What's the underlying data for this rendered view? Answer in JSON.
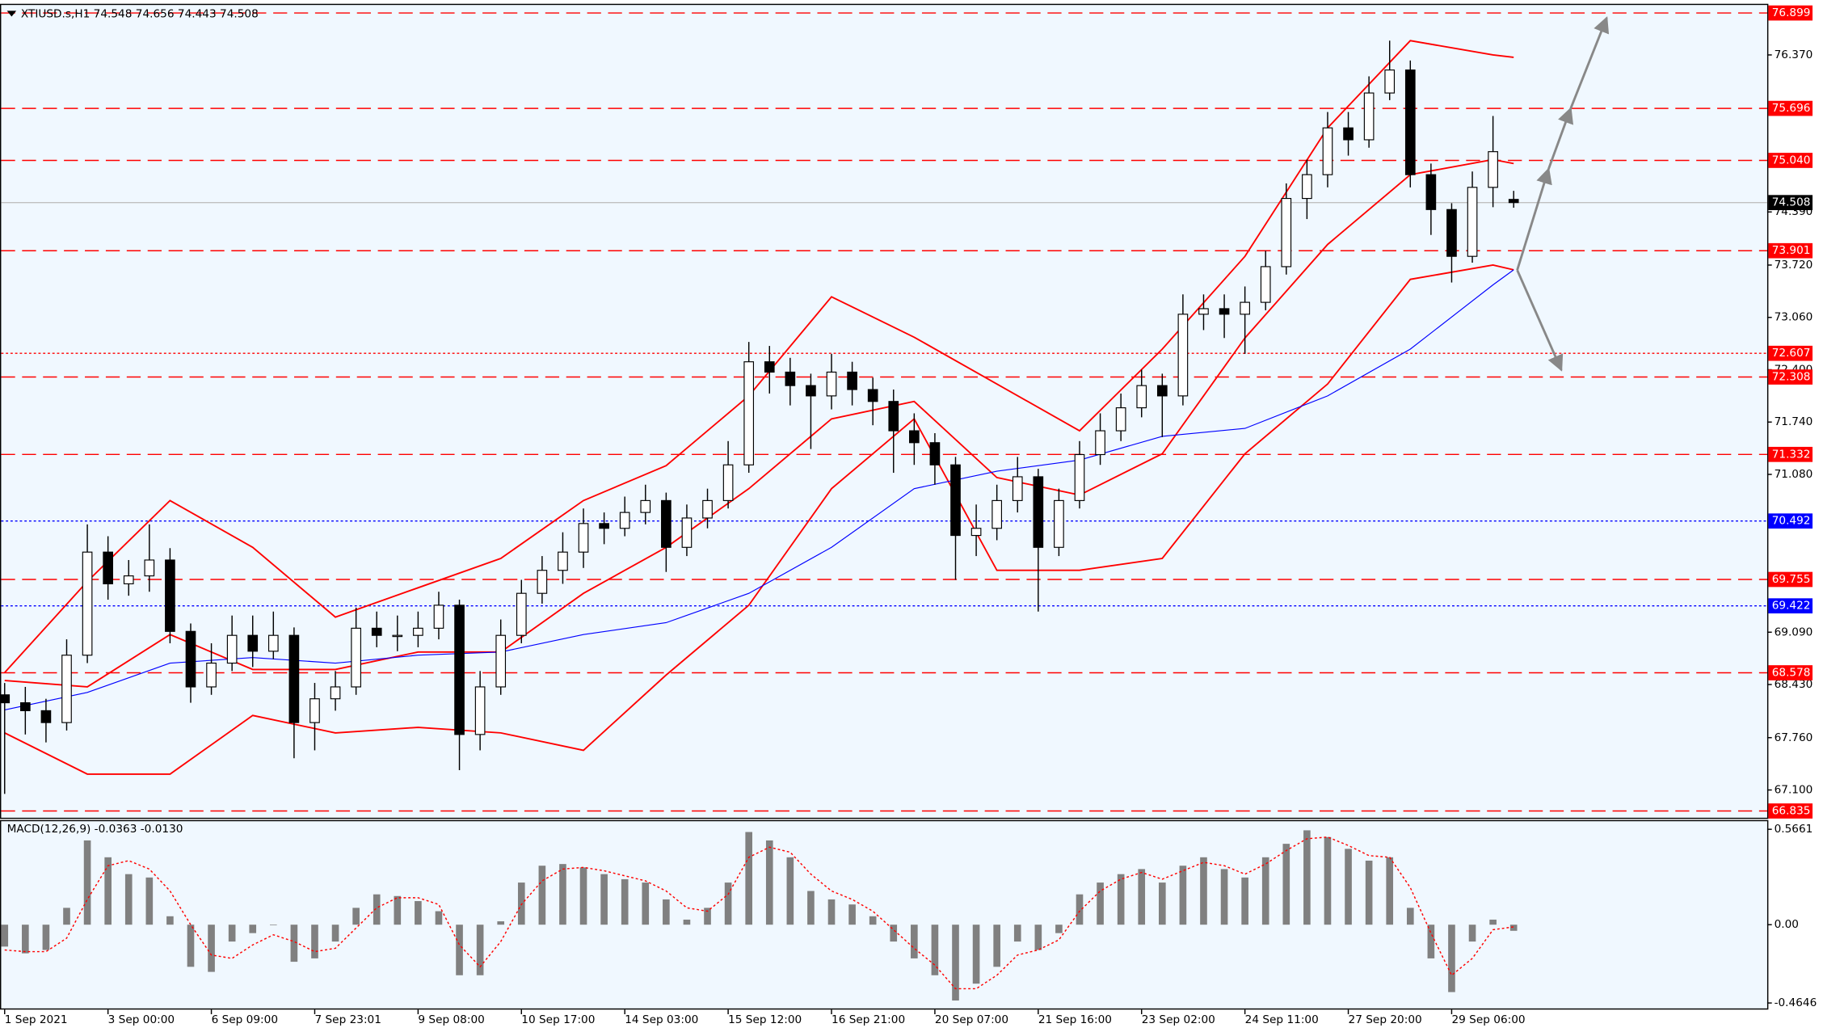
{
  "chart_data": [
    {
      "type": "candlestick",
      "title": "XTIUSD.s,H1  74.548 74.656 74.443 74.508",
      "x": [
        "1 Sep 2021",
        null,
        null,
        null,
        null,
        "3 Sep 00:00",
        null,
        null,
        null,
        null,
        "6 Sep 09:00",
        null,
        null,
        null,
        null,
        "7 Sep 23:01",
        null,
        null,
        null,
        null,
        "9 Sep 08:00",
        null,
        null,
        null,
        null,
        "10 Sep 17:00",
        null,
        null,
        null,
        null,
        "14 Sep 03:00",
        null,
        null,
        null,
        null,
        "15 Sep 12:00",
        null,
        null,
        null,
        null,
        "16 Sep 21:00",
        null,
        null,
        null,
        null,
        "20 Sep 07:00",
        null,
        null,
        null,
        null,
        "21 Sep 16:00",
        null,
        null,
        null,
        null,
        "23 Sep 02:00",
        null,
        null,
        null,
        null,
        "24 Sep 11:00",
        null,
        null,
        null,
        null,
        "27 Sep 20:00",
        null,
        null,
        null,
        null,
        "29 Sep 06:00",
        null,
        null,
        null
      ],
      "open": [
        68.3,
        68.2,
        68.1,
        67.95,
        68.8,
        70.1,
        69.7,
        69.8,
        70.0,
        69.1,
        68.4,
        68.7,
        69.05,
        68.85,
        69.05,
        67.95,
        68.25,
        68.4,
        69.14,
        69.05,
        69.05,
        69.14,
        69.43,
        67.8,
        68.4,
        69.05,
        69.58,
        69.87,
        70.1,
        70.46,
        70.4,
        70.6,
        70.75,
        70.16,
        70.53,
        70.75,
        71.2,
        72.5,
        72.37,
        72.2,
        72.07,
        72.37,
        72.15,
        72.0,
        71.63,
        71.48,
        71.2,
        70.31,
        70.4,
        70.75,
        71.05,
        70.16,
        70.75,
        71.33,
        71.63,
        71.92,
        72.2,
        72.07,
        73.1,
        73.17,
        73.1,
        73.25,
        73.7,
        74.56,
        74.86,
        75.45,
        75.3,
        75.89,
        76.18,
        74.86,
        74.42,
        73.83,
        74.7,
        74.548
      ],
      "high": [
        68.45,
        68.4,
        68.25,
        69.0,
        70.45,
        70.3,
        70.0,
        70.45,
        70.15,
        69.2,
        68.95,
        69.3,
        69.3,
        69.35,
        69.15,
        68.45,
        68.6,
        69.4,
        69.35,
        69.3,
        69.35,
        69.6,
        69.5,
        68.6,
        69.25,
        69.75,
        70.05,
        70.35,
        70.65,
        70.6,
        70.8,
        70.95,
        70.85,
        70.7,
        70.9,
        71.5,
        72.75,
        72.7,
        72.55,
        72.35,
        72.6,
        72.5,
        72.3,
        72.15,
        71.85,
        71.6,
        71.3,
        70.7,
        70.95,
        71.3,
        71.15,
        70.9,
        71.5,
        71.85,
        72.1,
        72.4,
        72.35,
        73.35,
        73.35,
        73.35,
        73.45,
        73.9,
        74.75,
        75.05,
        75.65,
        75.65,
        76.1,
        76.55,
        76.3,
        75.0,
        74.5,
        74.9,
        75.6,
        74.656
      ],
      "low": [
        67.05,
        67.8,
        67.7,
        67.85,
        68.7,
        69.5,
        69.55,
        69.6,
        68.95,
        68.2,
        68.3,
        68.6,
        68.65,
        68.75,
        67.5,
        67.6,
        68.1,
        68.3,
        68.9,
        68.85,
        68.9,
        69.0,
        67.35,
        67.6,
        68.3,
        68.95,
        69.45,
        69.7,
        69.9,
        70.2,
        70.3,
        70.45,
        69.85,
        70.05,
        70.4,
        70.65,
        71.1,
        72.1,
        71.95,
        71.4,
        71.9,
        71.95,
        71.7,
        71.1,
        71.2,
        70.95,
        69.75,
        70.05,
        70.25,
        70.6,
        69.35,
        70.05,
        70.65,
        71.2,
        71.5,
        71.8,
        71.55,
        71.95,
        72.9,
        72.8,
        72.6,
        73.15,
        73.6,
        74.3,
        74.7,
        75.1,
        75.2,
        75.8,
        74.7,
        74.1,
        73.5,
        73.75,
        74.45,
        74.443
      ],
      "close": [
        68.2,
        68.1,
        67.95,
        68.8,
        70.1,
        69.7,
        69.8,
        70.0,
        69.1,
        68.4,
        68.7,
        69.05,
        68.85,
        69.05,
        67.95,
        68.25,
        68.4,
        69.14,
        69.05,
        69.05,
        69.14,
        69.43,
        67.8,
        68.4,
        69.05,
        69.58,
        69.87,
        70.1,
        70.46,
        70.4,
        70.6,
        70.75,
        70.16,
        70.53,
        70.75,
        71.2,
        72.5,
        72.37,
        72.2,
        72.07,
        72.37,
        72.15,
        72.0,
        71.63,
        71.48,
        71.2,
        70.31,
        70.4,
        70.75,
        71.05,
        70.16,
        70.75,
        71.33,
        71.63,
        71.92,
        72.2,
        72.07,
        73.1,
        73.17,
        73.1,
        73.25,
        73.7,
        74.56,
        74.86,
        75.45,
        75.3,
        75.89,
        76.18,
        74.86,
        74.42,
        73.83,
        74.7,
        75.15,
        74.508
      ],
      "overlays": [
        {
          "color": "#ff0000",
          "x": [
            0,
            4,
            8,
            12,
            16,
            20,
            24,
            28,
            32,
            36,
            40,
            44,
            48,
            52,
            56,
            60,
            64,
            68,
            72,
            73
          ],
          "values": [
            68.58,
            69.73,
            70.75,
            70.16,
            69.28,
            69.65,
            70.02,
            70.75,
            71.19,
            72.07,
            73.32,
            72.81,
            72.22,
            71.63,
            72.66,
            73.83,
            75.45,
            76.55,
            76.37,
            76.34
          ]
        },
        {
          "color": "#ff0000",
          "x": [
            0,
            4,
            8,
            12,
            16,
            20,
            24,
            28,
            32,
            36,
            40,
            44,
            48,
            52,
            56,
            60,
            64,
            68,
            72,
            73
          ],
          "values": [
            68.48,
            68.4,
            69.06,
            68.62,
            68.62,
            68.84,
            68.84,
            69.58,
            70.16,
            70.9,
            71.78,
            72.0,
            71.04,
            70.82,
            71.34,
            72.8,
            73.98,
            74.86,
            75.05,
            75.0
          ]
        },
        {
          "color": "#ff0000",
          "x": [
            0,
            4,
            8,
            12,
            16,
            20,
            24,
            28,
            32,
            36,
            40,
            44,
            48,
            52,
            56,
            60,
            64,
            68,
            72,
            73
          ],
          "values": [
            67.82,
            67.3,
            67.3,
            68.04,
            67.82,
            67.89,
            67.82,
            67.6,
            68.55,
            69.43,
            70.9,
            71.78,
            69.87,
            69.87,
            70.02,
            71.34,
            72.22,
            73.54,
            73.72,
            73.66
          ]
        },
        {
          "color": "#0000ff",
          "x": [
            0,
            4,
            8,
            12,
            16,
            20,
            24,
            28,
            32,
            36,
            40,
            44,
            48,
            52,
            56,
            60,
            64,
            68,
            72,
            73
          ],
          "values": [
            68.11,
            68.33,
            68.7,
            68.77,
            68.7,
            68.8,
            68.84,
            69.06,
            69.21,
            69.58,
            70.16,
            70.9,
            71.12,
            71.26,
            71.56,
            71.66,
            72.07,
            72.66,
            73.47,
            73.66
          ]
        }
      ],
      "levels": [
        {
          "value": 76.899,
          "color": "#ff0000",
          "style": "dashed"
        },
        {
          "value": 75.696,
          "color": "#ff0000",
          "style": "dashed"
        },
        {
          "value": 75.04,
          "label": "75.040",
          "color": "#ff0000",
          "style": "dashed"
        },
        {
          "value": 73.901,
          "color": "#ff0000",
          "style": "dashed"
        },
        {
          "value": 72.607,
          "color": "#ff0000",
          "style": "dotted"
        },
        {
          "value": 72.308,
          "color": "#ff0000",
          "style": "dashed"
        },
        {
          "value": 71.332,
          "color": "#ff0000",
          "style": "dashed"
        },
        {
          "value": 70.492,
          "color": "#0000ff",
          "style": "dotted"
        },
        {
          "value": 69.755,
          "color": "#ff0000",
          "style": "dashed"
        },
        {
          "value": 69.422,
          "color": "#0000ff",
          "style": "dotted"
        },
        {
          "value": 68.578,
          "color": "#ff0000",
          "style": "dashed"
        },
        {
          "value": 66.835,
          "color": "#ff0000",
          "style": "dashed"
        }
      ],
      "ylim": [
        66.75,
        77.0
      ],
      "yticks": [
        {
          "value": 76.37,
          "label": "76.370"
        },
        {
          "value": 74.39,
          "label": "74.390"
        },
        {
          "value": 73.72,
          "label": "73.720"
        },
        {
          "value": 73.06,
          "label": "73.060"
        },
        {
          "value": 72.4,
          "label": "72.400"
        },
        {
          "value": 71.74,
          "label": "71.740"
        },
        {
          "value": 71.08,
          "label": "71.080"
        },
        {
          "value": 69.09,
          "label": "69.090"
        },
        {
          "value": 68.43,
          "label": "68.430"
        },
        {
          "value": 67.76,
          "label": "67.760"
        },
        {
          "value": 67.1,
          "label": "67.100"
        }
      ]
    },
    {
      "type": "bar",
      "title": "MACD(12,26,9) -0.0363 -0.0130",
      "color": "#808080",
      "values": [
        -0.13,
        -0.17,
        -0.15,
        0.1,
        0.5,
        0.4,
        0.3,
        0.28,
        0.05,
        -0.25,
        -0.28,
        -0.1,
        -0.05,
        0.0,
        -0.22,
        -0.2,
        -0.1,
        0.1,
        0.18,
        0.17,
        0.14,
        0.08,
        -0.3,
        -0.3,
        0.02,
        0.25,
        0.35,
        0.36,
        0.34,
        0.3,
        0.27,
        0.25,
        0.15,
        0.03,
        0.1,
        0.25,
        0.55,
        0.5,
        0.4,
        0.2,
        0.15,
        0.12,
        0.05,
        -0.1,
        -0.2,
        -0.3,
        -0.45,
        -0.35,
        -0.25,
        -0.1,
        -0.15,
        -0.05,
        0.18,
        0.25,
        0.3,
        0.33,
        0.25,
        0.35,
        0.4,
        0.33,
        0.28,
        0.4,
        0.48,
        0.56,
        0.52,
        0.45,
        0.38,
        0.4,
        0.1,
        -0.2,
        -0.4,
        -0.1,
        0.03,
        -0.0363
      ],
      "signal": {
        "color": "#ff0000",
        "values": [
          -0.15,
          -0.16,
          -0.16,
          -0.08,
          0.15,
          0.35,
          0.38,
          0.33,
          0.2,
          0.0,
          -0.18,
          -0.2,
          -0.12,
          -0.06,
          -0.1,
          -0.16,
          -0.14,
          -0.02,
          0.1,
          0.16,
          0.16,
          0.12,
          -0.12,
          -0.25,
          -0.1,
          0.12,
          0.26,
          0.33,
          0.34,
          0.32,
          0.29,
          0.26,
          0.2,
          0.1,
          0.08,
          0.18,
          0.4,
          0.46,
          0.43,
          0.3,
          0.2,
          0.15,
          0.08,
          -0.03,
          -0.14,
          -0.24,
          -0.38,
          -0.38,
          -0.3,
          -0.18,
          -0.15,
          -0.09,
          0.08,
          0.2,
          0.27,
          0.31,
          0.27,
          0.32,
          0.37,
          0.35,
          0.3,
          0.36,
          0.44,
          0.51,
          0.52,
          0.47,
          0.41,
          0.4,
          0.22,
          -0.05,
          -0.3,
          -0.2,
          -0.03,
          -0.013
        ]
      },
      "ylim": [
        -0.49,
        0.614
      ],
      "yticks": [
        0.5661,
        {
          "value": 0,
          "label": "0.00"
        },
        -0.4646
      ]
    }
  ]
}
